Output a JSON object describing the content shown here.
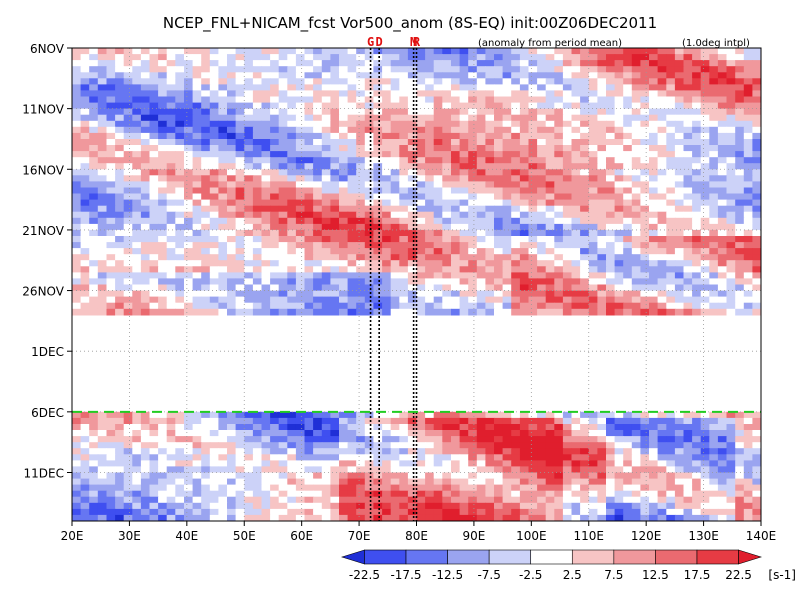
{
  "chart_data": {
    "type": "heatmap",
    "title": "NCEP_FNL+NICAM_fcst Vor500_anom (8S-EQ) init:00Z06DEC2011",
    "subtitle_left": "(anomaly from period mean)",
    "subtitle_right": "(1.0deg intpl)",
    "x_ticks": [
      "20E",
      "30E",
      "40E",
      "50E",
      "60E",
      "70E",
      "80E",
      "90E",
      "100E",
      "110E",
      "120E",
      "130E",
      "140E"
    ],
    "x_range": [
      20,
      140
    ],
    "y_ticks": [
      "6NOV",
      "11NOV",
      "16NOV",
      "21NOV",
      "26NOV",
      "1DEC",
      "6DEC",
      "11DEC"
    ],
    "y_range_days_from_6NOV": [
      0,
      39
    ],
    "grid": true,
    "missing_band": {
      "from": "28NOV",
      "to": "6DEC"
    },
    "init_line": {
      "label": "6DEC",
      "style": "green dashed"
    },
    "markers": [
      {
        "label": "G",
        "lon": 72
      },
      {
        "label": "D",
        "lon": 73.5
      },
      {
        "label": "M",
        "lon": 79.5
      },
      {
        "label": "R",
        "lon": 80
      }
    ],
    "colorbar": {
      "labels": [
        "-22.5",
        "-17.5",
        "-12.5",
        "-7.5",
        "-2.5",
        "2.5",
        "7.5",
        "12.5",
        "17.5",
        "22.5"
      ],
      "unit": "[s-1]",
      "colors": [
        "#1f2fd6",
        "#3f4ff0",
        "#6676f2",
        "#9aa4f0",
        "#ccd2f8",
        "#ffffff",
        "#f7c4c4",
        "#f0989c",
        "#ea6a70",
        "#e63b44",
        "#e01e2d"
      ]
    }
  }
}
